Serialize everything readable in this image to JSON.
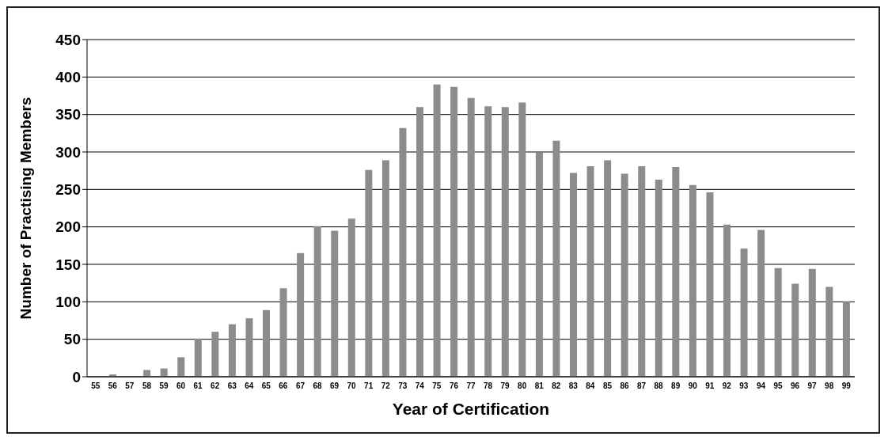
{
  "chart_data": {
    "type": "bar",
    "xlabel": "Year of Certification",
    "ylabel": "Number of Practising Members",
    "categories": [
      "55",
      "56",
      "57",
      "58",
      "59",
      "60",
      "61",
      "62",
      "63",
      "64",
      "65",
      "66",
      "67",
      "68",
      "69",
      "70",
      "71",
      "72",
      "73",
      "74",
      "75",
      "76",
      "77",
      "78",
      "79",
      "80",
      "81",
      "82",
      "83",
      "84",
      "85",
      "86",
      "87",
      "88",
      "89",
      "90",
      "91",
      "92",
      "93",
      "94",
      "95",
      "96",
      "97",
      "98",
      "99"
    ],
    "values": [
      0,
      3,
      0,
      9,
      11,
      26,
      51,
      60,
      70,
      78,
      89,
      118,
      165,
      201,
      195,
      211,
      276,
      289,
      332,
      360,
      390,
      387,
      372,
      361,
      360,
      366,
      299,
      315,
      272,
      281,
      289,
      271,
      281,
      263,
      280,
      256,
      246,
      203,
      171,
      196,
      145,
      124,
      144,
      120,
      100
    ],
    "color": "#8c8c8c",
    "ylim": [
      0,
      450
    ],
    "yticks": [
      0,
      50,
      100,
      150,
      200,
      250,
      300,
      350,
      400,
      450
    ],
    "grid": "y"
  }
}
